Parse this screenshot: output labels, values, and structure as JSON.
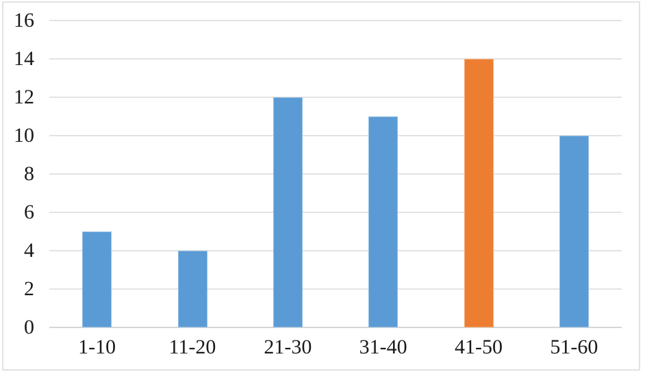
{
  "chart_data": {
    "type": "bar",
    "title": "",
    "xlabel": "",
    "ylabel": "",
    "categories": [
      "1-10",
      "11-20",
      "21-30",
      "31-40",
      "41-50",
      "51-60"
    ],
    "values": [
      5,
      4,
      12,
      11,
      14,
      10
    ],
    "highlighted_category": "41-50",
    "default_bar_color": "#5B9BD5",
    "highlight_color": "#ED7D31",
    "bar_colors": [
      "#5B9BD5",
      "#5B9BD5",
      "#5B9BD5",
      "#5B9BD5",
      "#ED7D31",
      "#5B9BD5"
    ],
    "ylim": [
      0,
      16
    ],
    "y_ticks": [
      0,
      2,
      4,
      6,
      8,
      10,
      12,
      14,
      16
    ],
    "grid": "horizontal-only",
    "gridline_color": "#e3e3e3",
    "axis_line_color": "#d6d6d6",
    "chart_border_color": "#e2e2e2",
    "label_color": "#1a1a1a",
    "legend": "none"
  }
}
